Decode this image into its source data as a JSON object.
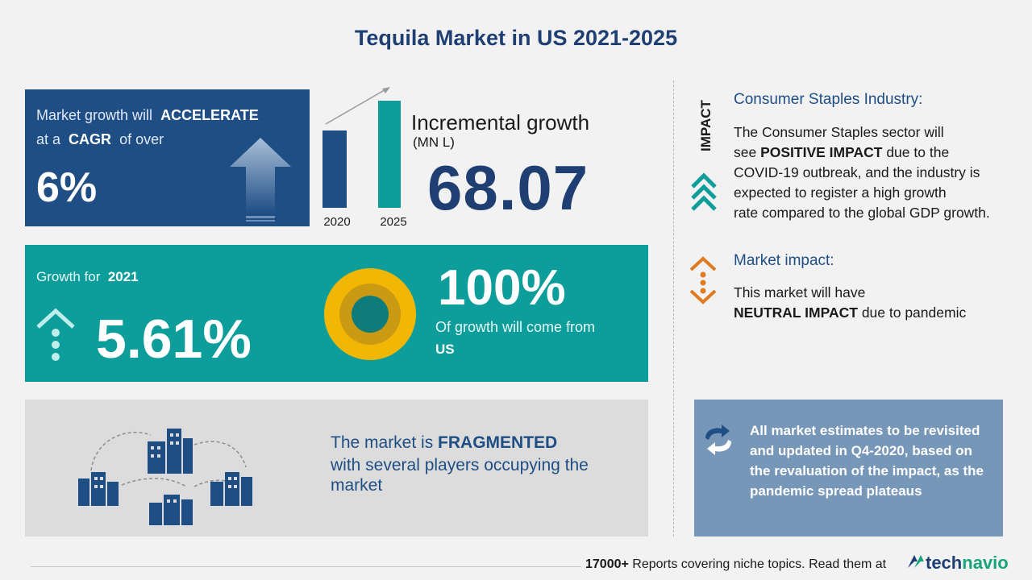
{
  "title": "Tequila Market in US 2021-2025",
  "cagr": {
    "line1_prefix": "Market growth will",
    "line1_bold": "ACCELERATE",
    "line2_prefix": "at a",
    "line2_bold": "CAGR",
    "line2_suffix": "of over",
    "value": "6%"
  },
  "incremental": {
    "label": "Incremental growth",
    "unit": "(MN L)",
    "value": "68.07",
    "years": [
      "2020",
      "2025"
    ]
  },
  "growth": {
    "label_prefix": "Growth for",
    "label_year": "2021",
    "value": "5.61%",
    "share_value": "100%",
    "share_text": "Of growth will come from",
    "share_region": "US"
  },
  "fragmented": {
    "line1_prefix": "The market is",
    "line1_bold": "FRAGMENTED",
    "line2": "with several players occupying the",
    "line3": "market"
  },
  "impact": {
    "vertical_label": "IMPACT",
    "heading": "Consumer Staples Industry:",
    "body_1": "The Consumer Staples sector will",
    "body_2_prefix": "see",
    "body_2_bold": "POSITIVE IMPACT",
    "body_2_suffix": "due to the",
    "body_3": "COVID-19 outbreak, and the industry is",
    "body_4": "expected to register a high growth",
    "body_5": "rate compared to the global GDP growth."
  },
  "market_impact": {
    "heading": "Market impact:",
    "line1": "This market will have",
    "line2_bold": "NEUTRAL IMPACT",
    "line2_suffix": "due to pandemic"
  },
  "note": {
    "text": "All market estimates to be revisited and updated in Q4-2020, based on the revaluation of the impact, as the pandemic spread plateaus"
  },
  "footer": {
    "count": "17000+",
    "text": "Reports covering niche topics. Read them at",
    "logo_a": "tech",
    "logo_b": "navio"
  },
  "colors": {
    "navy": "#1f4e85",
    "teal": "#0d9d9a",
    "orange": "#e07b22",
    "gold": "#f2b705"
  }
}
